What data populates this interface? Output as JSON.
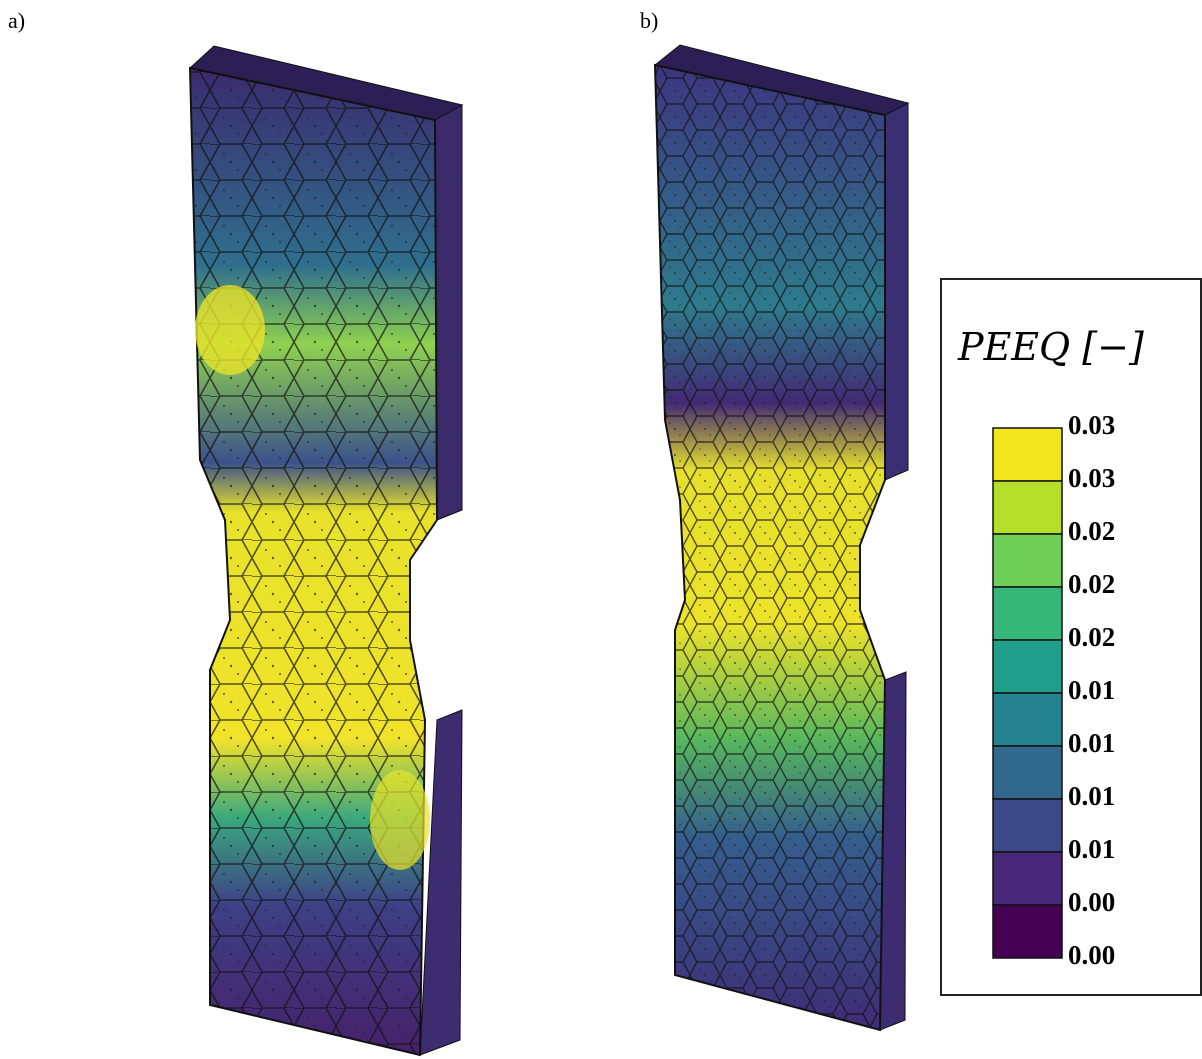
{
  "panels": [
    {
      "label": "a)"
    },
    {
      "label": "b)"
    }
  ],
  "legend": {
    "title": "PEEQ [−]",
    "labels": [
      "0.03",
      "0.03",
      "0.02",
      "0.02",
      "0.02",
      "0.01",
      "0.01",
      "0.01",
      "0.01",
      "0.00",
      "0.00"
    ]
  }
}
